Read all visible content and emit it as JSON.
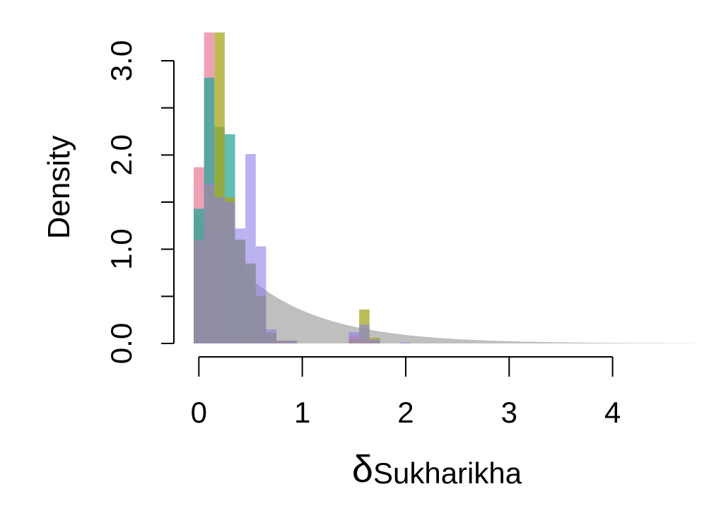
{
  "chart_data": {
    "type": "histogram",
    "xlabel_symbol": "δ",
    "xlabel_subscript": "Sukharikha",
    "ylabel": "Density",
    "xlim": [
      -0.05,
      4.85
    ],
    "ylim": [
      0,
      3.3
    ],
    "x_ticks": [
      0,
      1,
      2,
      3,
      4
    ],
    "x_tick_labels": [
      "0",
      "1",
      "2",
      "3",
      "4"
    ],
    "y_ticks": [
      0.0,
      0.5,
      1.0,
      1.5,
      2.0,
      2.5,
      3.0
    ],
    "y_tick_labels": [
      "0.0",
      "",
      "1.0",
      "",
      "2.0",
      "",
      "3.0"
    ],
    "grid": false,
    "prior_curve": {
      "type": "exponential_density",
      "rate": 1.35,
      "color": "#bfbfbf",
      "x_range": [
        -0.05,
        4.8
      ]
    },
    "bin_width": 0.1,
    "series": [
      {
        "color": "#e8819b",
        "opacity": 0.75,
        "bin_starts": [
          -0.05,
          0.05,
          0.15,
          0.25,
          0.35,
          0.45,
          0.55,
          0.65,
          0.75,
          0.85,
          1.45,
          1.55,
          1.65
        ],
        "values": [
          1.87,
          3.3,
          1.55,
          1.5,
          0.9,
          0.7,
          0.5,
          0.12,
          0.03,
          0.02,
          0.08,
          0.05,
          0.03
        ]
      },
      {
        "color": "#2aa79b",
        "opacity": 0.75,
        "bin_starts": [
          -0.05,
          0.05,
          0.15,
          0.25,
          0.35,
          0.45,
          0.55,
          0.65
        ],
        "values": [
          1.43,
          2.82,
          2.3,
          2.22,
          1.1,
          0.84,
          0.5,
          0.1
        ]
      },
      {
        "color": "#a6a61e",
        "opacity": 0.75,
        "bin_starts": [
          -0.05,
          0.05,
          0.15,
          0.25,
          0.35,
          0.45,
          0.55,
          0.65,
          0.75,
          0.85,
          1.45,
          1.55,
          1.65
        ],
        "values": [
          1.1,
          1.68,
          3.3,
          1.55,
          1.1,
          0.85,
          0.5,
          0.12,
          0.03,
          0.03,
          0.05,
          0.36,
          0.06
        ]
      },
      {
        "color": "#8c7ee8",
        "opacity": 0.6,
        "bin_starts": [
          -0.05,
          0.05,
          0.15,
          0.25,
          0.35,
          0.45,
          0.55,
          0.65,
          0.75,
          0.85,
          1.45,
          1.55,
          1.65,
          1.95
        ],
        "values": [
          1.1,
          1.7,
          1.55,
          1.5,
          1.22,
          2.01,
          1.03,
          0.15,
          0.03,
          0.03,
          0.12,
          0.2,
          0.04,
          0.01
        ]
      }
    ]
  }
}
